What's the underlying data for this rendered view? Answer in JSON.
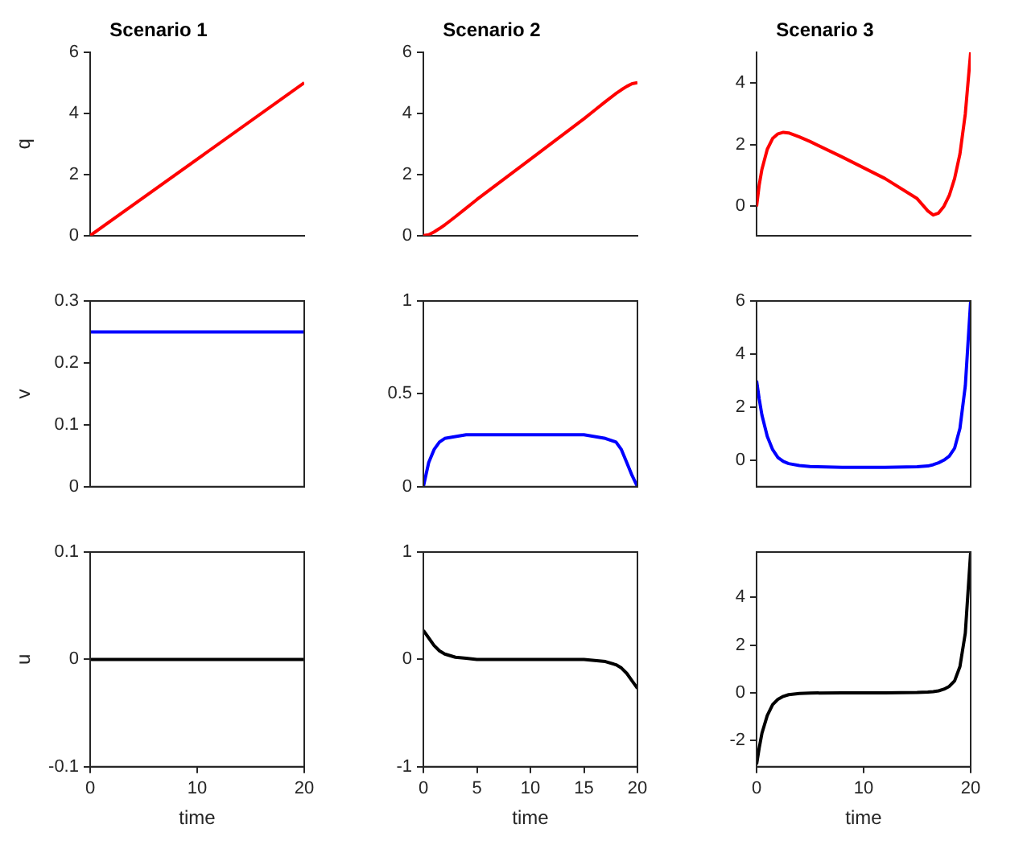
{
  "chart_data": [
    {
      "type": "line",
      "title": "Scenario 1",
      "ylabel": "q",
      "x": [
        0,
        20
      ],
      "xlim": [
        0,
        20
      ],
      "ylim": [
        0,
        6
      ],
      "yticks": [
        0,
        2,
        4,
        6
      ],
      "tick_labels": "y",
      "series": [
        {
          "color": "#ff0000",
          "values": [
            0,
            5
          ]
        }
      ]
    },
    {
      "type": "line",
      "title": "Scenario 2",
      "x": [
        0,
        0.5,
        1,
        1.5,
        2,
        3,
        4,
        5,
        10,
        15,
        16,
        17,
        18,
        18.5,
        19,
        19.5,
        20
      ],
      "xlim": [
        0,
        20
      ],
      "ylim": [
        0,
        6
      ],
      "yticks": [
        0,
        2,
        4,
        6
      ],
      "tick_labels": "y",
      "series": [
        {
          "color": "#ff0000",
          "values": [
            0,
            0.03,
            0.12,
            0.23,
            0.35,
            0.62,
            0.9,
            1.18,
            2.5,
            3.82,
            4.1,
            4.38,
            4.65,
            4.77,
            4.88,
            4.97,
            5
          ]
        }
      ]
    },
    {
      "type": "line",
      "title": "Scenario 3",
      "x": [
        0,
        0.25,
        0.5,
        1,
        1.5,
        2,
        2.5,
        3,
        4,
        5,
        8,
        12,
        15,
        16,
        16.5,
        17,
        17.5,
        18,
        18.5,
        19,
        19.5,
        20
      ],
      "xlim": [
        0,
        20
      ],
      "ylim": [
        -0.95,
        5
      ],
      "yticks": [
        0,
        2,
        4
      ],
      "tick_labels": "y",
      "series": [
        {
          "color": "#ff0000",
          "values": [
            0,
            0.7,
            1.2,
            1.85,
            2.2,
            2.35,
            2.4,
            2.38,
            2.25,
            2.1,
            1.6,
            0.9,
            0.25,
            -0.15,
            -0.28,
            -0.22,
            0,
            0.35,
            0.9,
            1.7,
            3,
            5
          ]
        }
      ]
    },
    {
      "type": "line",
      "ylabel": "v",
      "x": [
        0,
        20
      ],
      "xlim": [
        0,
        20
      ],
      "ylim": [
        0,
        0.3
      ],
      "yticks": [
        0,
        0.1,
        0.2,
        0.3
      ],
      "tick_labels": "y",
      "series": [
        {
          "color": "#0000ff",
          "values": [
            0.25,
            0.25
          ]
        }
      ]
    },
    {
      "type": "line",
      "x": [
        0,
        0.5,
        1,
        1.5,
        2,
        3,
        4,
        5,
        10,
        15,
        16,
        17,
        18,
        18.5,
        19,
        19.5,
        20
      ],
      "xlim": [
        0,
        20
      ],
      "ylim": [
        0,
        1
      ],
      "yticks": [
        0,
        0.5,
        1
      ],
      "tick_labels": "y",
      "series": [
        {
          "color": "#0000ff",
          "values": [
            0,
            0.13,
            0.2,
            0.24,
            0.26,
            0.27,
            0.28,
            0.28,
            0.28,
            0.28,
            0.27,
            0.26,
            0.24,
            0.2,
            0.13,
            0.06,
            0
          ]
        }
      ]
    },
    {
      "type": "line",
      "x": [
        0,
        0.25,
        0.5,
        1,
        1.5,
        2,
        2.5,
        3,
        4,
        5,
        8,
        12,
        15,
        16,
        16.5,
        17,
        17.5,
        18,
        18.5,
        19,
        19.5,
        20
      ],
      "xlim": [
        0,
        20
      ],
      "ylim": [
        -1,
        6
      ],
      "yticks": [
        0,
        2,
        4,
        6
      ],
      "tick_labels": "y",
      "series": [
        {
          "color": "#0000ff",
          "values": [
            3,
            2.3,
            1.7,
            0.9,
            0.4,
            0.1,
            -0.05,
            -0.13,
            -0.2,
            -0.24,
            -0.27,
            -0.27,
            -0.25,
            -0.22,
            -0.17,
            -0.1,
            0,
            0.15,
            0.45,
            1.2,
            2.8,
            6
          ]
        }
      ]
    },
    {
      "type": "line",
      "ylabel": "u",
      "xlabel": "time",
      "x": [
        0,
        20
      ],
      "xlim": [
        0,
        20
      ],
      "xticks": [
        0,
        10,
        20
      ],
      "ylim": [
        -0.1,
        0.1
      ],
      "yticks": [
        -0.1,
        0,
        0.1
      ],
      "series": [
        {
          "color": "#000000",
          "values": [
            0,
            0
          ]
        }
      ]
    },
    {
      "type": "line",
      "xlabel": "time",
      "x": [
        0,
        0.5,
        1,
        1.5,
        2,
        3,
        4,
        5,
        10,
        15,
        16,
        17,
        18,
        18.5,
        19,
        19.5,
        20
      ],
      "xlim": [
        0,
        20
      ],
      "xticks": [
        0,
        5,
        10,
        15,
        20
      ],
      "ylim": [
        -1,
        1
      ],
      "yticks": [
        -1,
        0,
        1
      ],
      "series": [
        {
          "color": "#000000",
          "values": [
            0.27,
            0.2,
            0.13,
            0.08,
            0.05,
            0.02,
            0.01,
            0,
            0,
            0,
            -0.01,
            -0.02,
            -0.05,
            -0.08,
            -0.13,
            -0.2,
            -0.27
          ]
        }
      ]
    },
    {
      "type": "line",
      "xlabel": "time",
      "x": [
        0,
        0.25,
        0.5,
        1,
        1.5,
        2,
        2.5,
        3,
        4,
        5,
        8,
        12,
        15,
        16,
        16.5,
        17,
        17.5,
        18,
        18.5,
        19,
        19.5,
        20
      ],
      "xlim": [
        0,
        20
      ],
      "xticks": [
        0,
        10,
        20
      ],
      "ylim": [
        -3.1,
        5.9
      ],
      "yticks": [
        -2,
        0,
        2,
        4
      ],
      "series": [
        {
          "color": "#000000",
          "values": [
            -3,
            -2.3,
            -1.7,
            -0.95,
            -0.5,
            -0.27,
            -0.15,
            -0.08,
            -0.03,
            -0.01,
            0,
            0,
            0.01,
            0.03,
            0.05,
            0.08,
            0.15,
            0.27,
            0.5,
            1.1,
            2.5,
            5.9
          ]
        }
      ]
    }
  ]
}
